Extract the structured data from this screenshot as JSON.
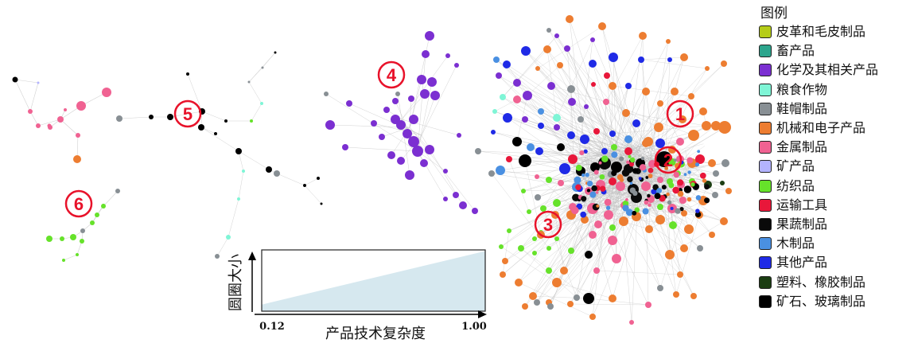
{
  "legend": {
    "title": "图例",
    "items": [
      {
        "label": "皮革和毛皮制品",
        "color": "#b5cc18"
      },
      {
        "label": "畜产品",
        "color": "#2ca58d"
      },
      {
        "label": "化学及其相关产品",
        "color": "#7b2fd1"
      },
      {
        "label": "粮食作物",
        "color": "#7ff5d6"
      },
      {
        "label": "鞋帽制品",
        "color": "#888f94"
      },
      {
        "label": "机械和电子产品",
        "color": "#ed7d31"
      },
      {
        "label": "金属制品",
        "color": "#f06292"
      },
      {
        "label": "矿产品",
        "color": "#b3b3ff"
      },
      {
        "label": "纺织品",
        "color": "#66e22a"
      },
      {
        "label": "运输工具",
        "color": "#e8173a"
      },
      {
        "label": "果蔬制品",
        "color": "#0a0a0a"
      },
      {
        "label": "木制品",
        "color": "#4a90e2"
      },
      {
        "label": "其他产品",
        "color": "#1f2ae6"
      },
      {
        "label": "塑料、橡胶制品",
        "color": "#1b3d12"
      },
      {
        "label": "矿石、玻璃制品",
        "color": "#000000"
      }
    ]
  },
  "clusters": [
    {
      "label": "①"
    },
    {
      "label": "②"
    },
    {
      "label": "③"
    },
    {
      "label": "④"
    },
    {
      "label": "⑤"
    },
    {
      "label": "⑥"
    }
  ],
  "size_scale": {
    "y_label": "圆圈大小",
    "x_label": "产品技术复杂度",
    "min_label": "0.12",
    "max_label": "1.00",
    "min": 0.12,
    "max": 1.0
  }
}
